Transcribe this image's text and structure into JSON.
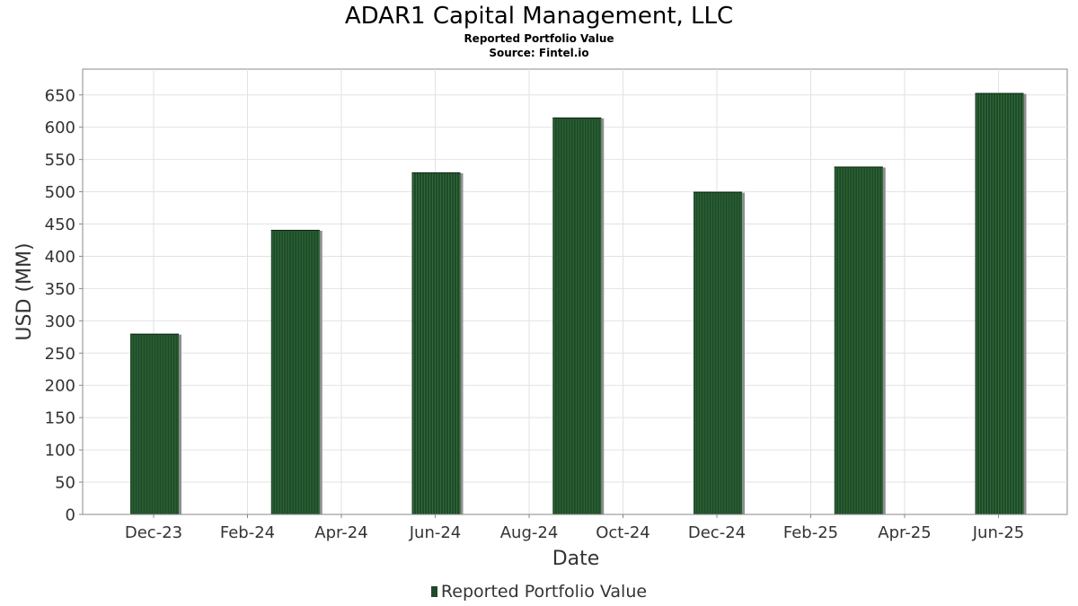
{
  "chart_data": {
    "type": "bar",
    "title": "ADAR1 Capital Management, LLC",
    "subtitle": "Reported Portfolio Value",
    "source": "Source: Fintel.io",
    "xlabel": "Date",
    "ylabel": "USD (MM)",
    "x_tick_labels": [
      "Dec-23",
      "Feb-24",
      "Apr-24",
      "Jun-24",
      "Aug-24",
      "Oct-24",
      "Dec-24",
      "Feb-25",
      "Apr-25",
      "Jun-25"
    ],
    "y_ticks": [
      0,
      50,
      100,
      150,
      200,
      250,
      300,
      350,
      400,
      450,
      500,
      550,
      600,
      650
    ],
    "ylim": [
      0,
      690
    ],
    "grid": true,
    "legend_position": "bottom",
    "series": [
      {
        "name": "Reported Portfolio Value",
        "color": "#1f4a28",
        "points": [
          {
            "date": "Dec-23",
            "value": 280
          },
          {
            "date": "Mar-24",
            "value": 441
          },
          {
            "date": "Jun-24",
            "value": 530
          },
          {
            "date": "Sep-24",
            "value": 615
          },
          {
            "date": "Dec-24",
            "value": 500
          },
          {
            "date": "Mar-25",
            "value": 539
          },
          {
            "date": "Jun-25",
            "value": 653
          }
        ]
      }
    ]
  }
}
